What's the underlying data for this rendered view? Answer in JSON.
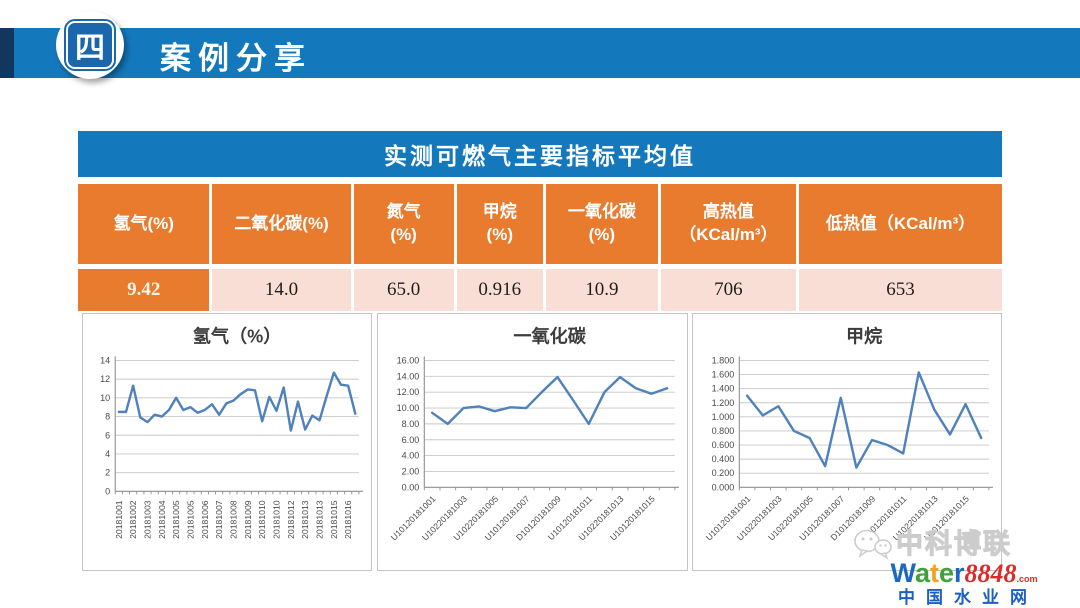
{
  "header": {
    "badge_label": "四",
    "title": "案例分享"
  },
  "table": {
    "title": "实测可燃气主要指标平均值",
    "columns": [
      "氢气(%)",
      "二氧化碳(%)",
      "氮气\n(%)",
      "甲烷\n(%)",
      "一氧化碳\n(%)",
      "高热值\n（KCal/m³）",
      "低热值（KCal/m³）"
    ],
    "values": [
      "9.42",
      "14.0",
      "65.0",
      "0.916",
      "10.9",
      "706",
      "653"
    ]
  },
  "chart_data": [
    {
      "type": "line",
      "title": "氢气（%）",
      "xlabel": "",
      "ylabel": "",
      "ylim": [
        0,
        14
      ],
      "ytick_step": 2,
      "y_decimals": 0,
      "grid": true,
      "legend": "none",
      "label_rotation": 90,
      "label_every": 2,
      "x_labels": [
        "20181001",
        "20181002",
        "20181003",
        "20181004",
        "20181005",
        "20181005",
        "20181006",
        "20181007",
        "20181008",
        "20181009",
        "20181010",
        "20181010",
        "20181012",
        "20181013",
        "20181013",
        "20181015",
        "20181016"
      ],
      "values": [
        8.5,
        8.5,
        11.3,
        7.9,
        7.4,
        8.2,
        8.0,
        8.7,
        10.0,
        8.7,
        9.0,
        8.4,
        8.7,
        9.3,
        8.2,
        9.4,
        9.7,
        10.4,
        10.9,
        10.8,
        7.5,
        10.1,
        8.6,
        11.1,
        6.5,
        9.6,
        6.6,
        8.1,
        7.6,
        10.2,
        12.7,
        11.4,
        11.3,
        8.3
      ]
    },
    {
      "type": "line",
      "title": "一氧化碳",
      "xlabel": "",
      "ylabel": "",
      "ylim": [
        0,
        16
      ],
      "ytick_step": 2,
      "y_decimals": 2,
      "grid": true,
      "legend": "none",
      "label_rotation": 45,
      "label_every": 2,
      "x_labels": [
        "U10120181001",
        "U10220181003",
        "U10220181005",
        "U10120181007",
        "D10120181009",
        "U10120181011",
        "U10220181013",
        "U10120181015"
      ],
      "values": [
        9.4,
        8.0,
        10.0,
        10.2,
        9.6,
        10.1,
        10.0,
        12.0,
        13.9,
        11.0,
        8.0,
        12.0,
        13.9,
        12.5,
        11.8,
        12.5
      ]
    },
    {
      "type": "line",
      "title": "甲烷",
      "xlabel": "",
      "ylabel": "",
      "ylim": [
        0,
        1.8
      ],
      "ytick_step": 0.2,
      "y_decimals": 3,
      "grid": true,
      "legend": "none",
      "label_rotation": 45,
      "label_every": 2,
      "x_labels": [
        "U10120181001",
        "U10220181003",
        "U10220181005",
        "U10120181007",
        "D10120181009",
        "U10120181011",
        "U10220181013",
        "U10120181015"
      ],
      "values": [
        1.3,
        1.02,
        1.15,
        0.8,
        0.7,
        0.3,
        1.27,
        0.28,
        0.67,
        0.6,
        0.48,
        1.63,
        1.1,
        0.75,
        1.18,
        0.7
      ]
    }
  ],
  "watermark": {
    "brand": "中科博联",
    "logo_word": "Water",
    "logo_letter_colors": [
      "#1c67c0",
      "#3fa13b",
      "#f4a11d",
      "#3fa13b",
      "#1c67c0"
    ],
    "logo_number": "8848",
    "logo_suffix": ".com",
    "site": "中国水业网"
  },
  "colors": {
    "band_blue": "#1478bc",
    "band_cap_navy": "#11375f",
    "header_orange": "#e87b2e",
    "row_pink": "#f8ded4",
    "line_blue": "#4f81bd",
    "grid_gray": "#c8c8c8",
    "axis_gray": "#8f8f8f"
  }
}
